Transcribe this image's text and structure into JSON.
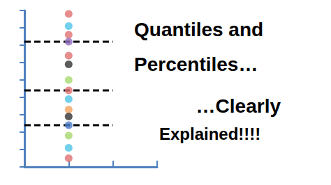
{
  "chart_data": {
    "type": "scatter",
    "annotations": [
      "Quantiles and",
      "Percentiles…",
      "…Clearly",
      "Explained!!!!"
    ],
    "x": [
      1,
      1,
      1,
      1,
      1,
      1,
      1,
      1,
      1,
      1,
      1,
      1,
      1,
      1,
      1
    ],
    "values": [
      8.8,
      8.1,
      7.6,
      7.2,
      6.4,
      5.9,
      5.0,
      4.4,
      3.9,
      3.3,
      2.9,
      2.4,
      1.8,
      1.1,
      0.5
    ],
    "colors": [
      "#e07070",
      "#4fc4e8",
      "#e07070",
      "#8e6bbf",
      "#e07070",
      "#333333",
      "#a8d86e",
      "#e07070",
      "#4fc4e8",
      "#f4a460",
      "#333333",
      "#4a7ac8",
      "#a8d86e",
      "#4fc4e8",
      "#e07070"
    ],
    "hlines": [
      7.2,
      4.4,
      2.4
    ],
    "hline_x": [
      0,
      2
    ],
    "xlim": [
      0,
      3
    ],
    "xticks": [
      0,
      1,
      2,
      3
    ],
    "ylim": [
      0,
      9
    ],
    "yticks": [
      0,
      1,
      2,
      3,
      4,
      5,
      6,
      7,
      8,
      9
    ],
    "tick_labels": false,
    "grid": false
  }
}
